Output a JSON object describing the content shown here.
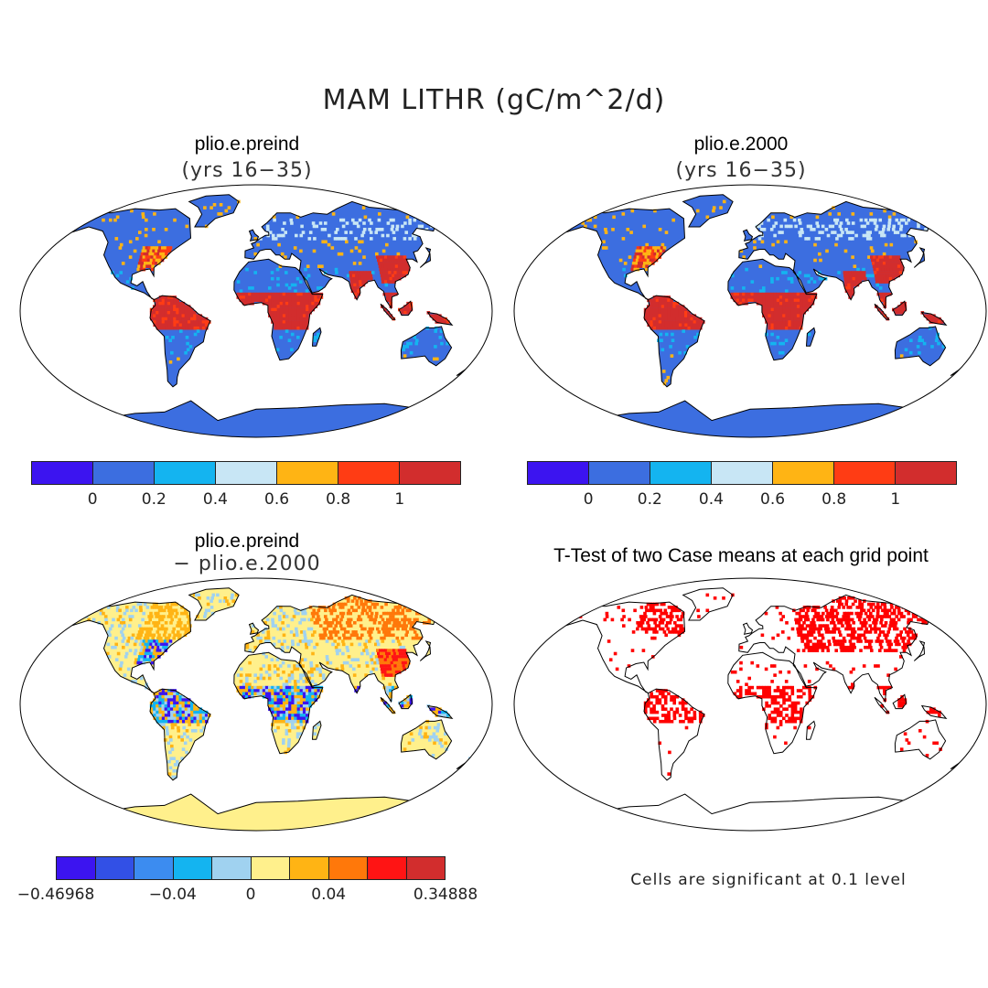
{
  "figure": {
    "title": "MAM LITHR (gC/m^2/d)"
  },
  "panels": [
    {
      "title": "plio.e.preind",
      "subtitle": "(yrs 16−35)",
      "kind": "field"
    },
    {
      "title": "plio.e.2000",
      "subtitle": "(yrs 16−35)",
      "kind": "field"
    },
    {
      "title": "plio.e.preind",
      "subtitle": "− plio.e.2000",
      "kind": "difference"
    },
    {
      "title": "T-Test of two Case means at each grid point",
      "subtitle": "",
      "kind": "significance"
    }
  ],
  "colorbar_abs": {
    "colors": [
      "#3c14f0",
      "#3c6ee0",
      "#14b4f0",
      "#c8e6f5",
      "#ffb414",
      "#ff3c14",
      "#d22d2d"
    ],
    "ticks": [
      "0",
      "0.2",
      "0.4",
      "0.6",
      "0.8",
      "1"
    ]
  },
  "colorbar_diff": {
    "colors": [
      "#3c14f0",
      "#3250e6",
      "#3c8cf0",
      "#14b4f0",
      "#a0d2f0",
      "#fff08c",
      "#ffb414",
      "#ff780a",
      "#ff1414",
      "#d22d2d"
    ],
    "ticks": [
      "−0.46968",
      "−0.04",
      "0",
      "0.04",
      "0.34888"
    ]
  },
  "significance": {
    "note": "Cells are significant at 0.1 level",
    "color": "#ff0000"
  },
  "map_colors": {
    "land_low": "#3c6ee0",
    "ocean": "#ffffff",
    "outline": "#000000"
  }
}
